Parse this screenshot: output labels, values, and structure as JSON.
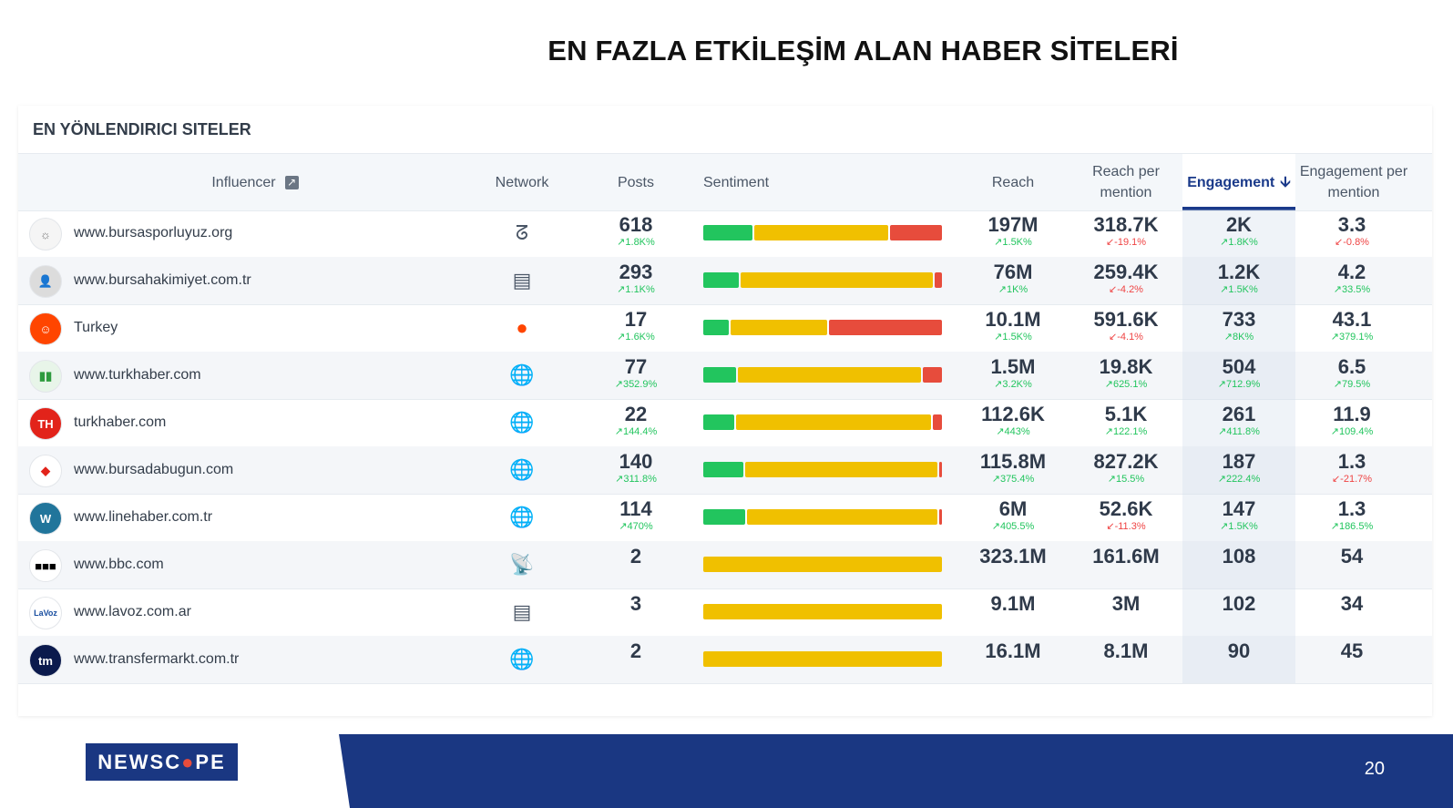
{
  "page": {
    "title": "EN FAZLA ETKİLEŞİM ALAN HABER SİTELERİ",
    "number": "20"
  },
  "logo": {
    "pre": "NEWSC",
    "o": "●",
    "post": "PE"
  },
  "card": {
    "title": "EN YÖNLENDIRICI SITELER"
  },
  "columns": {
    "influencer": "Influencer",
    "network": "Network",
    "posts": "Posts",
    "sentiment": "Sentiment",
    "reach": "Reach",
    "reach_per_mention": "Reach per mention",
    "engagement": "Engagement",
    "engagement_per_mention": "Engagement per mention"
  },
  "icons": {
    "external": "external-link-icon",
    "sort": "sort-desc-icon"
  },
  "colors": {
    "positive": "#22c55e",
    "neutral": "#f0c000",
    "negative": "#e74c3c",
    "brand": "#1a3782"
  },
  "rows": [
    {
      "site": "www.bursasporluyuz.org",
      "network": "blog-icon",
      "posts": "618",
      "posts_c": "↗1.8K%",
      "posts_d": "up",
      "reach": "197M",
      "reach_c": "↗1.5K%",
      "reach_d": "up",
      "rpm": "318.7K",
      "rpm_c": "↙-19.1%",
      "rpm_d": "down",
      "eng": "2K",
      "eng_c": "↗1.8K%",
      "eng_d": "up",
      "epm": "3.3",
      "epm_c": "↙-0.8%",
      "epm_d": "down",
      "sentiment": [
        21,
        57,
        22
      ]
    },
    {
      "site": "www.bursahakimiyet.com.tr",
      "network": "news-icon",
      "posts": "293",
      "posts_c": "↗1.1K%",
      "posts_d": "up",
      "reach": "76M",
      "reach_c": "↗1K%",
      "reach_d": "up",
      "rpm": "259.4K",
      "rpm_c": "↙-4.2%",
      "rpm_d": "down",
      "eng": "1.2K",
      "eng_c": "↗1.5K%",
      "eng_d": "up",
      "epm": "4.2",
      "epm_c": "↗33.5%",
      "epm_d": "up",
      "sentiment": [
        15,
        82,
        3
      ]
    },
    {
      "site": "Turkey",
      "network": "reddit-icon",
      "posts": "17",
      "posts_c": "↗1.6K%",
      "posts_d": "up",
      "reach": "10.1M",
      "reach_c": "↗1.5K%",
      "reach_d": "up",
      "rpm": "591.6K",
      "rpm_c": "↙-4.1%",
      "rpm_d": "down",
      "eng": "733",
      "eng_c": "↗8K%",
      "eng_d": "up",
      "epm": "43.1",
      "epm_c": "↗379.1%",
      "epm_d": "up",
      "sentiment": [
        11,
        41,
        48
      ]
    },
    {
      "site": "www.turkhaber.com",
      "network": "web-icon",
      "posts": "77",
      "posts_c": "↗352.9%",
      "posts_d": "up",
      "reach": "1.5M",
      "reach_c": "↗3.2K%",
      "reach_d": "up",
      "rpm": "19.8K",
      "rpm_c": "↗625.1%",
      "rpm_d": "up",
      "eng": "504",
      "eng_c": "↗712.9%",
      "eng_d": "up",
      "epm": "6.5",
      "epm_c": "↗79.5%",
      "epm_d": "up",
      "sentiment": [
        14,
        78,
        8
      ]
    },
    {
      "site": "turkhaber.com",
      "network": "web-icon",
      "posts": "22",
      "posts_c": "↗144.4%",
      "posts_d": "up",
      "reach": "112.6K",
      "reach_c": "↗443%",
      "reach_d": "up",
      "rpm": "5.1K",
      "rpm_c": "↗122.1%",
      "rpm_d": "up",
      "eng": "261",
      "eng_c": "↗411.8%",
      "eng_d": "up",
      "epm": "11.9",
      "epm_c": "↗109.4%",
      "epm_d": "up",
      "sentiment": [
        13,
        83,
        4
      ]
    },
    {
      "site": "www.bursadabugun.com",
      "network": "web-icon",
      "posts": "140",
      "posts_c": "↗311.8%",
      "posts_d": "up",
      "reach": "115.8M",
      "reach_c": "↗375.4%",
      "reach_d": "up",
      "rpm": "827.2K",
      "rpm_c": "↗15.5%",
      "rpm_d": "up",
      "eng": "187",
      "eng_c": "↗222.4%",
      "eng_d": "up",
      "epm": "1.3",
      "epm_c": "↙-21.7%",
      "epm_d": "down",
      "sentiment": [
        17,
        82,
        1
      ]
    },
    {
      "site": "www.linehaber.com.tr",
      "network": "web-icon",
      "posts": "114",
      "posts_c": "↗470%",
      "posts_d": "up",
      "reach": "6M",
      "reach_c": "↗405.5%",
      "reach_d": "up",
      "rpm": "52.6K",
      "rpm_c": "↙-11.3%",
      "rpm_d": "down",
      "eng": "147",
      "eng_c": "↗1.5K%",
      "eng_d": "up",
      "epm": "1.3",
      "epm_c": "↗186.5%",
      "epm_d": "up",
      "sentiment": [
        18,
        81,
        1
      ]
    },
    {
      "site": "www.bbc.com",
      "network": "broadcast-icon",
      "posts": "2",
      "posts_c": "",
      "posts_d": "",
      "reach": "323.1M",
      "reach_c": "",
      "reach_d": "",
      "rpm": "161.6M",
      "rpm_c": "",
      "rpm_d": "",
      "eng": "108",
      "eng_c": "",
      "eng_d": "",
      "epm": "54",
      "epm_c": "",
      "epm_d": "",
      "sentiment": [
        0,
        100,
        0
      ]
    },
    {
      "site": "www.lavoz.com.ar",
      "network": "news-icon",
      "posts": "3",
      "posts_c": "",
      "posts_d": "",
      "reach": "9.1M",
      "reach_c": "",
      "reach_d": "",
      "rpm": "3M",
      "rpm_c": "",
      "rpm_d": "",
      "eng": "102",
      "eng_c": "",
      "eng_d": "",
      "epm": "34",
      "epm_c": "",
      "epm_d": "",
      "sentiment": [
        0,
        100,
        0
      ]
    },
    {
      "site": "www.transfermarkt.com.tr",
      "network": "web-icon",
      "posts": "2",
      "posts_c": "",
      "posts_d": "",
      "reach": "16.1M",
      "reach_c": "",
      "reach_d": "",
      "rpm": "8.1M",
      "rpm_c": "",
      "rpm_d": "",
      "eng": "90",
      "eng_c": "",
      "eng_d": "",
      "epm": "45",
      "epm_c": "",
      "epm_d": "",
      "sentiment": [
        0,
        100,
        0
      ]
    }
  ]
}
